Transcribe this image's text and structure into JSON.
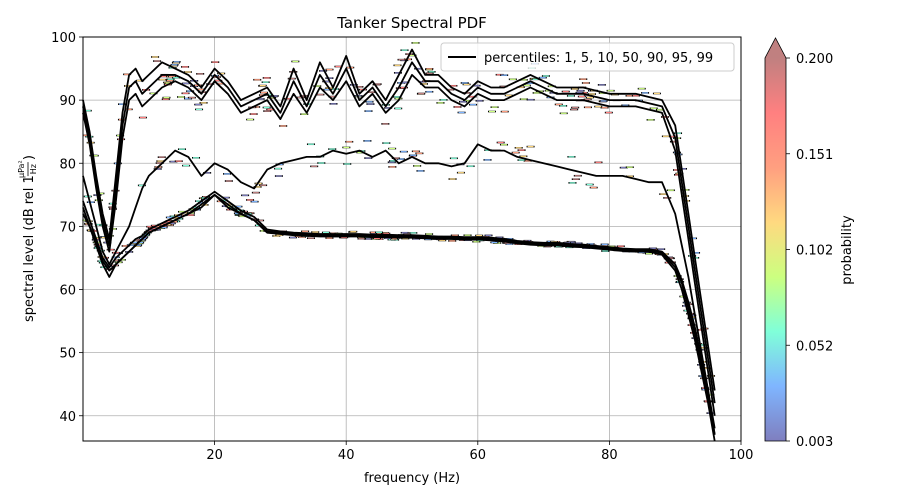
{
  "chart_data": {
    "type": "heatmap",
    "title": "Tanker Spectral PDF",
    "xlabel": "frequency (Hz)",
    "ylabel": "spectral level (dB rel 1",
    "ylabel_unit_num": "µPa²",
    "ylabel_unit_den": "Hz",
    "ylabel_close": ")",
    "xlim": [
      0,
      100
    ],
    "ylim": [
      36,
      100
    ],
    "x_ticks": [
      20,
      40,
      60,
      80,
      100
    ],
    "y_ticks": [
      40,
      50,
      60,
      70,
      80,
      90,
      100
    ],
    "grid": true,
    "legend": {
      "placement": "top-right",
      "label": "percentiles: 1, 5, 10, 50, 90, 95, 99"
    },
    "colorbar": {
      "label": "probability",
      "ticks": [
        "0.003",
        "0.052",
        "0.102",
        "0.151",
        "0.200"
      ],
      "range": [
        0.003,
        0.2
      ],
      "extend": "max",
      "colors": [
        "#7f7fbf",
        "#7fb5ff",
        "#80ffd9",
        "#ccff80",
        "#ffd980",
        "#ff9f80",
        "#ff8080",
        "#c08080"
      ]
    },
    "line_color": "#000000",
    "x": [
      0,
      1,
      2,
      3,
      4,
      5,
      6,
      7,
      8,
      9,
      10,
      12,
      14,
      16,
      18,
      20,
      22,
      24,
      26,
      28,
      30,
      32,
      34,
      36,
      38,
      40,
      42,
      44,
      46,
      48,
      50,
      52,
      54,
      56,
      58,
      60,
      62,
      64,
      66,
      68,
      70,
      72,
      74,
      76,
      78,
      80,
      82,
      84,
      86,
      88,
      90,
      91,
      92,
      93,
      94,
      95,
      96
    ],
    "series": [
      {
        "values": [
          72,
          70,
          67,
          64,
          62,
          64,
          65,
          66,
          67,
          68,
          69,
          70,
          71,
          72,
          73,
          75,
          73,
          72,
          71,
          69,
          68.8,
          68.6,
          68.5,
          68.4,
          68.4,
          68.4,
          68.4,
          68.3,
          68.3,
          68.2,
          68.2,
          68.1,
          68,
          68,
          67.9,
          67.9,
          67.8,
          67.6,
          67.3,
          67.1,
          67,
          67,
          66.8,
          66.7,
          66.5,
          66.3,
          66.1,
          66,
          66,
          65.5,
          63,
          60,
          56,
          52,
          47,
          42,
          36
        ]
      },
      {
        "values": [
          73,
          70,
          67.5,
          64.5,
          63,
          64,
          65,
          66,
          67,
          68,
          69,
          70,
          71,
          72,
          73.5,
          75,
          73.5,
          72,
          71,
          69.2,
          69,
          68.8,
          68.7,
          68.6,
          68.6,
          68.6,
          68.6,
          68.5,
          68.5,
          68.4,
          68.4,
          68.3,
          68.2,
          68.2,
          68.1,
          68.1,
          68,
          67.8,
          67.5,
          67.3,
          67.2,
          67.2,
          67,
          66.9,
          66.7,
          66.5,
          66.3,
          66.2,
          66.2,
          65.8,
          63.5,
          61,
          57,
          53,
          48,
          43,
          37
        ]
      },
      {
        "values": [
          74,
          71,
          68,
          65,
          63.5,
          65,
          66,
          67,
          68,
          68.5,
          69.5,
          70.5,
          71.5,
          72.5,
          74,
          75.5,
          74,
          72.5,
          71.5,
          69.5,
          69.2,
          69,
          68.9,
          68.8,
          68.8,
          68.8,
          68.8,
          68.7,
          68.7,
          68.6,
          68.6,
          68.5,
          68.4,
          68.4,
          68.3,
          68.3,
          68.2,
          68,
          67.7,
          67.5,
          67.4,
          67.4,
          67.2,
          67.1,
          66.9,
          66.7,
          66.5,
          66.4,
          66.4,
          66,
          64,
          61.5,
          58,
          54,
          49,
          44,
          38
        ]
      },
      {
        "values": [
          78,
          74,
          70,
          66,
          64,
          66,
          68,
          70,
          73,
          76,
          78,
          80,
          82,
          81,
          78,
          80,
          79,
          77,
          76,
          79,
          80,
          80.5,
          81,
          81,
          82,
          81.5,
          82,
          81,
          82,
          80,
          81,
          80,
          80,
          79.5,
          80,
          83,
          82,
          82,
          81,
          80.5,
          80,
          79.5,
          79,
          78.5,
          78,
          78,
          78,
          77.5,
          77,
          77,
          72,
          67,
          62,
          56,
          50,
          44,
          37
        ]
      },
      {
        "values": [
          88,
          83,
          76,
          70,
          66,
          74,
          84,
          90,
          91,
          89,
          90,
          92,
          93,
          92,
          90,
          93,
          91,
          88,
          89,
          90,
          87,
          91,
          88,
          92,
          90,
          93,
          89,
          91,
          88,
          90,
          94,
          92,
          92,
          90,
          89,
          91,
          90,
          90,
          91,
          92,
          91,
          90,
          90,
          90,
          89.5,
          89,
          89,
          89,
          88.5,
          88,
          82,
          75,
          68,
          61,
          54,
          47,
          40
        ]
      },
      {
        "values": [
          89,
          84,
          77,
          71,
          67,
          76,
          86,
          92,
          93,
          91,
          92,
          94,
          94,
          93,
          91,
          94,
          92,
          89,
          90,
          91,
          88,
          93,
          89,
          94,
          91,
          95,
          90,
          92,
          89,
          92,
          96,
          93,
          93,
          91,
          90,
          92,
          91,
          91,
          92,
          93,
          92,
          91,
          91,
          91,
          90.5,
          90,
          90,
          90,
          89.5,
          89,
          84,
          77,
          70,
          63,
          56,
          49,
          42
        ]
      },
      {
        "values": [
          90,
          85,
          78,
          72,
          68,
          78,
          88,
          94,
          95,
          93,
          94,
          96,
          95,
          94,
          92,
          95,
          93,
          90,
          91,
          92,
          89,
          95,
          90,
          96,
          92,
          97,
          91,
          93,
          90,
          94,
          98,
          94,
          94,
          92,
          91,
          93,
          92,
          92,
          93,
          94,
          93,
          92,
          92,
          92,
          91.5,
          91,
          91,
          91,
          90.5,
          90,
          86,
          79,
          72,
          65,
          58,
          51,
          44
        ]
      }
    ]
  }
}
